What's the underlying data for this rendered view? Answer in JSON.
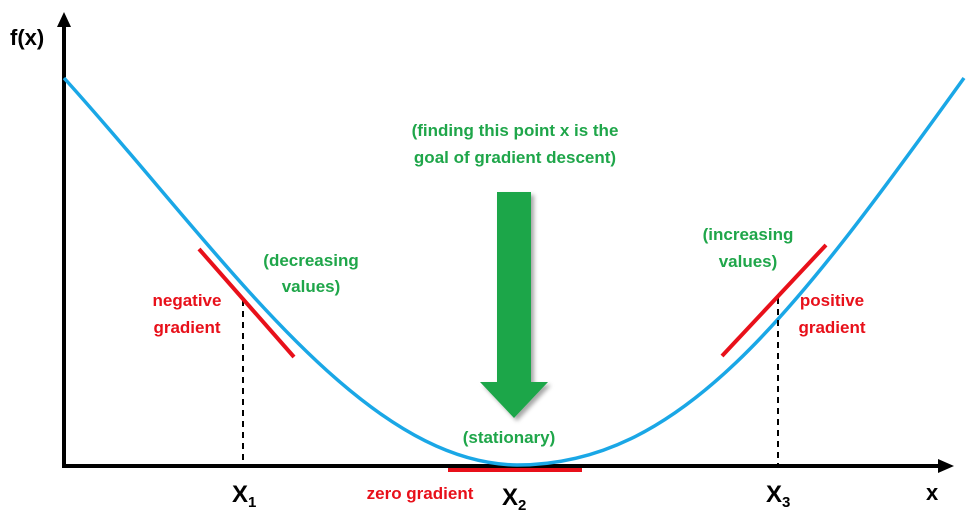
{
  "axes": {
    "y_label": "f(x)",
    "x_label": "x"
  },
  "points": [
    {
      "name": "X",
      "sub": "1"
    },
    {
      "name": "X",
      "sub": "2"
    },
    {
      "name": "X",
      "sub": "3"
    }
  ],
  "annotations": {
    "goal_line1": "(finding this point x is the",
    "goal_line2": "goal of gradient descent)",
    "decreasing_line1": "(decreasing",
    "decreasing_line2": "values)",
    "increasing_line1": "(increasing",
    "increasing_line2": "values)",
    "negative_line1": "negative",
    "negative_line2": "gradient",
    "positive_line1": "positive",
    "positive_line2": "gradient",
    "stationary": "(stationary)",
    "zero_gradient": "zero gradient"
  },
  "colors": {
    "curve": "#1aa7e6",
    "tangent": "#e8101a",
    "arrow": "#1fa64a",
    "annotation_green": "#1fa64a",
    "annotation_red": "#e8101a"
  }
}
